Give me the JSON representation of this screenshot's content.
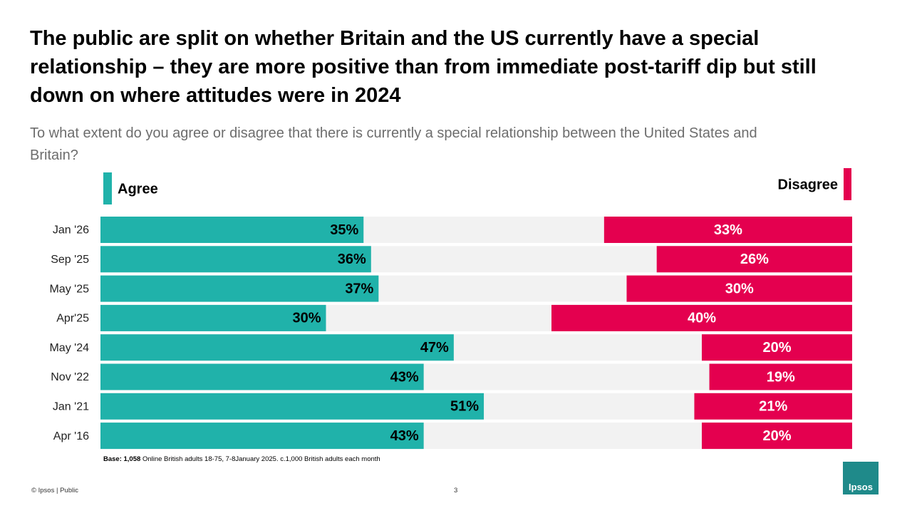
{
  "chart_data": {
    "type": "diverging_bar",
    "title": "The public are split on whether Britain and the US currently have a special relationship – they are more positive than from immediate post-tariff dip but still down on where attitudes were in 2024",
    "subtitle": "To what extent do you agree or disagree that there is currently a special relationship between the United States and Britain?",
    "categories": [
      "Jan '26",
      "Sep '25",
      "May '25",
      "Apr'25",
      "May '24",
      "Nov '22",
      "Jan '21",
      "Apr '16"
    ],
    "series": [
      {
        "name": "Agree",
        "color": "#20b2aa",
        "values": [
          35,
          36,
          37,
          30,
          47,
          43,
          51,
          43
        ],
        "value_labels": [
          "35%",
          "36%",
          "37%",
          "30%",
          "47%",
          "43%",
          "51%",
          "43%"
        ]
      },
      {
        "name": "Disagree",
        "color": "#e4004f",
        "values": [
          33,
          26,
          30,
          40,
          20,
          19,
          21,
          20
        ],
        "value_labels": [
          "33%",
          "26%",
          "30%",
          "40%",
          "20%",
          "19%",
          "21%",
          "20%"
        ]
      }
    ],
    "xlim": [
      0,
      100
    ]
  },
  "base_note": {
    "label": "Base: 1,058",
    "text": "Online British adults 18-75, 7-8January 2025. c.1,000 British adults each month"
  },
  "footer": {
    "copyright": "© Ipsos | Public",
    "page": "3",
    "logo": "Ipsos"
  }
}
